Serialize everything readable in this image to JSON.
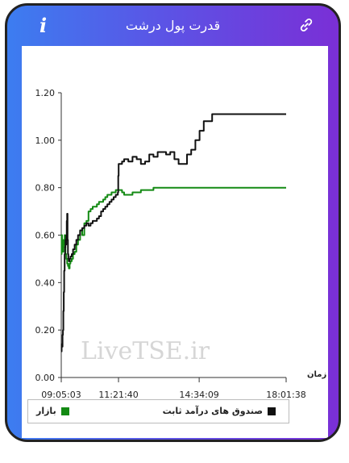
{
  "header": {
    "title": "قدرت پول درشت",
    "info_icon": "i"
  },
  "watermark": "LiveTSE.ir",
  "colors": {
    "market": "#138a13",
    "fixed_income": "#111111"
  },
  "chart_data": {
    "type": "line",
    "title": "قدرت پول درشت",
    "xlabel": "زمان",
    "ylabel": "",
    "ylim": [
      0,
      1.2
    ],
    "yticks": [
      "0.00",
      "0.20",
      "0.40",
      "0.60",
      "0.80",
      "1.00",
      "1.20"
    ],
    "xticks": [
      "09:05:03",
      "11:21:40",
      "14:34:09",
      "18:01:38"
    ],
    "xtick_positions": [
      0,
      136.6,
      329.1,
      536.6
    ],
    "grid": false,
    "legend_position": "bottom",
    "series": [
      {
        "name": "بازار",
        "color": "#138a13",
        "x": [
          0,
          1,
          2,
          3,
          4,
          5,
          6,
          7,
          8,
          9,
          10,
          12,
          14,
          16,
          18,
          20,
          22,
          25,
          28,
          32,
          36,
          40,
          45,
          50,
          55,
          60,
          65,
          70,
          75,
          80,
          85,
          90,
          95,
          100,
          105,
          110,
          115,
          120,
          125,
          130,
          135,
          140,
          145,
          150,
          160,
          170,
          180,
          190,
          200,
          220,
          240,
          260,
          290,
          320,
          360,
          400,
          440,
          480,
          520,
          536.6
        ],
        "y": [
          0.52,
          0.6,
          0.55,
          0.58,
          0.53,
          0.57,
          0.56,
          0.58,
          0.6,
          0.55,
          0.52,
          0.5,
          0.48,
          0.47,
          0.46,
          0.48,
          0.49,
          0.5,
          0.52,
          0.53,
          0.56,
          0.58,
          0.62,
          0.6,
          0.65,
          0.66,
          0.7,
          0.71,
          0.72,
          0.72,
          0.73,
          0.74,
          0.74,
          0.75,
          0.76,
          0.77,
          0.77,
          0.78,
          0.78,
          0.79,
          0.79,
          0.79,
          0.78,
          0.77,
          0.77,
          0.78,
          0.78,
          0.79,
          0.79,
          0.8,
          0.8,
          0.8,
          0.8,
          0.8,
          0.8,
          0.8,
          0.8,
          0.8,
          0.8,
          0.8
        ]
      },
      {
        "name": "صندوق های درآمد ثابت",
        "color": "#111111",
        "x": [
          0,
          1,
          2,
          3,
          4,
          5,
          6,
          7,
          8,
          9,
          10,
          11,
          12,
          13,
          14,
          15,
          16,
          17,
          18,
          20,
          22,
          25,
          28,
          32,
          36,
          40,
          45,
          50,
          55,
          60,
          65,
          70,
          75,
          80,
          85,
          90,
          95,
          100,
          105,
          110,
          115,
          120,
          125,
          130,
          135,
          136,
          137,
          140,
          145,
          150,
          160,
          170,
          180,
          190,
          200,
          210,
          220,
          230,
          240,
          250,
          260,
          270,
          280,
          290,
          300,
          310,
          320,
          330,
          340,
          360,
          400,
          450,
          500,
          536.6
        ],
        "y": [
          0.11,
          0.14,
          0.13,
          0.18,
          0.2,
          0.28,
          0.36,
          0.45,
          0.52,
          0.55,
          0.58,
          0.56,
          0.6,
          0.66,
          0.69,
          0.58,
          0.52,
          0.5,
          0.49,
          0.5,
          0.51,
          0.52,
          0.54,
          0.56,
          0.58,
          0.6,
          0.62,
          0.63,
          0.64,
          0.65,
          0.64,
          0.65,
          0.66,
          0.66,
          0.67,
          0.68,
          0.7,
          0.71,
          0.72,
          0.73,
          0.74,
          0.75,
          0.76,
          0.77,
          0.78,
          0.85,
          0.9,
          0.9,
          0.91,
          0.92,
          0.91,
          0.93,
          0.92,
          0.9,
          0.91,
          0.94,
          0.93,
          0.95,
          0.95,
          0.94,
          0.95,
          0.92,
          0.9,
          0.9,
          0.94,
          0.96,
          1.0,
          1.04,
          1.08,
          1.11,
          1.11,
          1.11,
          1.11,
          1.11
        ]
      }
    ]
  }
}
